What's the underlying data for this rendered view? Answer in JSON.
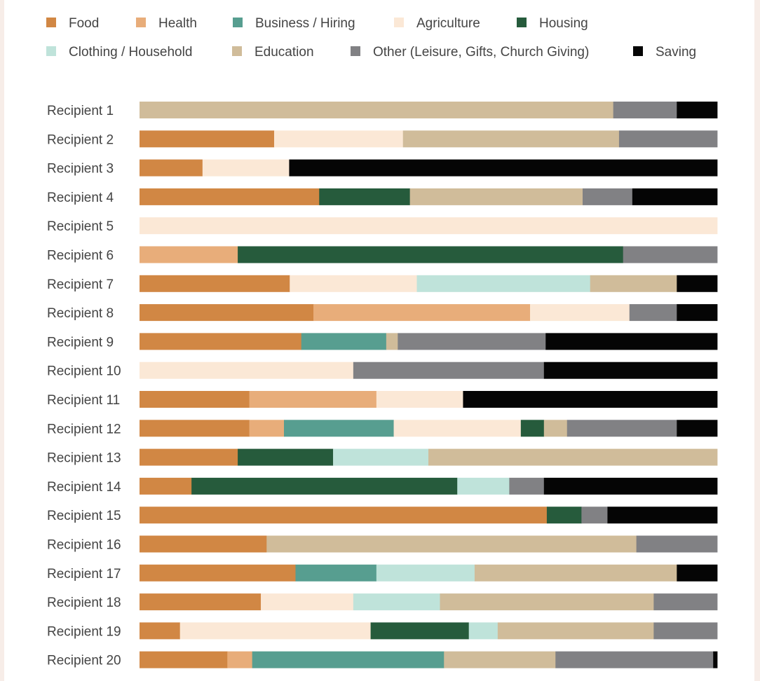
{
  "chart_data": {
    "type": "bar",
    "orientation": "horizontal",
    "stacked": true,
    "normalized": true,
    "title": "",
    "xlabel": "",
    "ylabel": "",
    "xlim": [
      0,
      100
    ],
    "grid": false,
    "legend_position": "top",
    "categories": [
      "Recipient 1",
      "Recipient 2",
      "Recipient 3",
      "Recipient 4",
      "Recipient 5",
      "Recipient 6",
      "Recipient 7",
      "Recipient 8",
      "Recipient 9",
      "Recipient 10",
      "Recipient 11",
      "Recipient 12",
      "Recipient 13",
      "Recipient 14",
      "Recipient 15",
      "Recipient 16",
      "Recipient 17",
      "Recipient 18",
      "Recipient 19",
      "Recipient 20"
    ],
    "series": [
      {
        "name": "Food",
        "color": "#d18744",
        "values": [
          0,
          23.3,
          10.9,
          31.1,
          0,
          0,
          26,
          30.1,
          28,
          0,
          19,
          19,
          17,
          9,
          70.5,
          22,
          27,
          21,
          7,
          15.2
        ]
      },
      {
        "name": "Health",
        "color": "#e8ad7a",
        "values": [
          0,
          0,
          0,
          0,
          0,
          17,
          0,
          37.5,
          0,
          0,
          22,
          6,
          0,
          0,
          0,
          0,
          0,
          0,
          0,
          4.3
        ]
      },
      {
        "name": "Business / Hiring",
        "color": "#579e90",
        "values": [
          0,
          0,
          0,
          0,
          0,
          0,
          0,
          0,
          14.7,
          0,
          0,
          19,
          0,
          0,
          0,
          0,
          14,
          0,
          0,
          33.2
        ]
      },
      {
        "name": "Agriculture",
        "color": "#fbe8d6",
        "values": [
          0,
          22.3,
          15,
          0,
          100,
          0,
          22,
          17.2,
          0,
          37,
          15,
          22,
          0,
          0,
          0,
          0,
          0,
          16,
          33,
          0
        ]
      },
      {
        "name": "Housing",
        "color": "#265b3c",
        "values": [
          0,
          0,
          0,
          15.7,
          0,
          66.7,
          0,
          0,
          0,
          0,
          0,
          4,
          16.5,
          46,
          6,
          0,
          0,
          0,
          17,
          0
        ]
      },
      {
        "name": "Clothing / Household",
        "color": "#bfe3da",
        "values": [
          0,
          0,
          0,
          0,
          0,
          0,
          30,
          0,
          0,
          0,
          0,
          0,
          16.5,
          9,
          0,
          0,
          17,
          15,
          5,
          0
        ]
      },
      {
        "name": "Education",
        "color": "#d0bc9a",
        "values": [
          82,
          37.4,
          0,
          29.9,
          0,
          0,
          15,
          0,
          2,
          0,
          0,
          4,
          50,
          0,
          0,
          64,
          35,
          37,
          27,
          19.3
        ]
      },
      {
        "name": "Other (Leisure, Gifts, Church Giving)",
        "color": "#818184",
        "values": [
          11,
          17,
          0,
          8.6,
          0,
          16.3,
          0,
          8.2,
          25.6,
          33,
          0,
          19,
          0,
          6,
          4.5,
          14,
          0,
          11,
          11,
          27.3
        ]
      },
      {
        "name": "Saving",
        "color": "#050505",
        "values": [
          7,
          0,
          74.1,
          14.7,
          0,
          0,
          7,
          7,
          29.7,
          30,
          44,
          7,
          0,
          30,
          19,
          0,
          7,
          0,
          0,
          0.7
        ]
      }
    ]
  }
}
